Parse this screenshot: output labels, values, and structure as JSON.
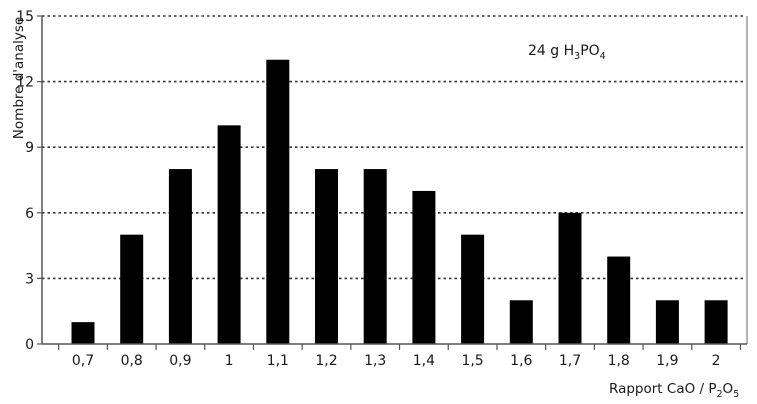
{
  "chart_data": {
    "type": "bar",
    "categories": [
      "0,7",
      "0,8",
      "0,9",
      "1",
      "1,1",
      "1,2",
      "1,3",
      "1,4",
      "1,5",
      "1,6",
      "1,7",
      "1,8",
      "1,9",
      "2"
    ],
    "values": [
      1,
      5,
      8,
      10,
      13,
      8,
      8,
      7,
      5,
      2,
      6,
      4,
      2,
      2
    ],
    "ylim": [
      0,
      15
    ],
    "yticks": [
      0,
      3,
      6,
      9,
      12,
      15
    ],
    "ylabel": "Nombre d'analyse",
    "xlabel": {
      "text": "Rapport CaO / P",
      "sub1": "2",
      "mid": "O",
      "sub2": "5"
    },
    "annotation": {
      "pre": "24 g H",
      "sub1": "3",
      "mid": "PO",
      "sub2": "4"
    },
    "grid": "horizontal dotted",
    "colors": {
      "bars": "#000000",
      "grid": "#333333",
      "axis": "#555555",
      "border": "#888888"
    }
  }
}
